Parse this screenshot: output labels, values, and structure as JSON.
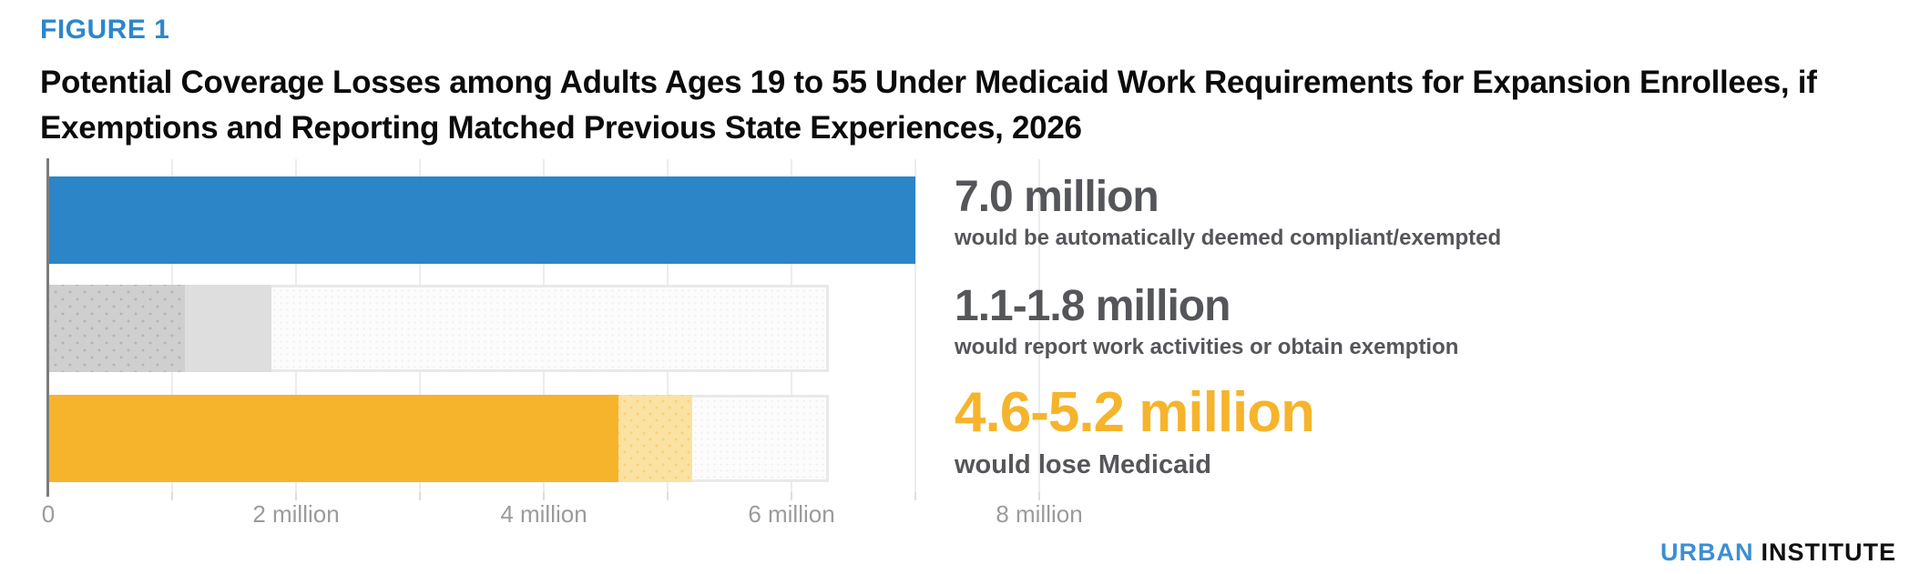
{
  "figure_label": "FIGURE 1",
  "title": "Potential Coverage Losses among Adults Ages 19 to 55 Under Medicaid Work Requirements for Expansion Enrollees, if Exemptions and Reporting Matched Previous State Experiences, 2026",
  "logo": {
    "part1": "URBAN",
    "part2": "INSTITUTE"
  },
  "colors": {
    "figure_label_blue": "#2d87c9",
    "bar_blue": "#2b85c7",
    "bar_dark_gray": "#cfcfcf",
    "bar_light_gray": "#dedede",
    "bar_yellow": "#f6b42c",
    "bar_light_yellow": "#fbe2a2",
    "bar_faint": "#fcfcfc",
    "annotation_gray": "#55565a",
    "annotation_yellow": "#f6b42c",
    "axis_label_gray": "#9b9b9b",
    "gridline": "#ececec",
    "logo_blue": "#3d8ed3"
  },
  "chart_data": {
    "type": "bar",
    "orientation": "horizontal",
    "title": "Potential Coverage Losses among Adults Ages 19 to 55 Under Medicaid Work Requirements for Expansion Enrollees, if Exemptions and Reporting Matched Previous State Experiences, 2026",
    "unit": "millions of adults",
    "xlim": [
      0,
      8.16
    ],
    "gridline_interval_million": 1,
    "grid": true,
    "legend": "none",
    "x_ticks": [
      {
        "label": "0",
        "value": 0
      },
      {
        "label": "2 million",
        "value": 2
      },
      {
        "label": "4 million",
        "value": 4
      },
      {
        "label": "6 million",
        "value": 6
      },
      {
        "label": "8 million",
        "value": 8
      }
    ],
    "rows": [
      {
        "id": "deemed_compliant",
        "segments": [
          {
            "to_million": 7.0,
            "style": "solid-blue",
            "color": "#2b85c7",
            "role": "point_estimate"
          }
        ],
        "annotation": {
          "value": "7.0 million",
          "desc": "would be automatically deemed compliant/exempted"
        }
      },
      {
        "id": "report_or_exemption",
        "segments": [
          {
            "to_million": 1.1,
            "style": "dots-dark",
            "color": "#cfcfcf",
            "role": "lower_bound"
          },
          {
            "to_million": 1.8,
            "style": "flat-gray",
            "color": "#dedede",
            "role": "upper_bound"
          },
          {
            "to_million": 6.3,
            "style": "faint",
            "color": "#fcfcfc",
            "role": "total_subject_to_requirement_estimated"
          }
        ],
        "annotation": {
          "value": "1.1-1.8 million",
          "desc": "would report work activities or obtain exemption"
        }
      },
      {
        "id": "lose_medicaid",
        "segments": [
          {
            "to_million": 4.6,
            "style": "solid-yellow",
            "color": "#f6b42c",
            "role": "lower_bound"
          },
          {
            "to_million": 5.2,
            "style": "dots-yellow",
            "color": "#fbe2a2",
            "role": "upper_bound"
          },
          {
            "to_million": 6.3,
            "style": "faint",
            "color": "#fcfcfc",
            "role": "total_subject_to_requirement_estimated"
          }
        ],
        "annotation": {
          "value": "4.6-5.2 million",
          "desc": "would lose Medicaid"
        }
      }
    ]
  }
}
